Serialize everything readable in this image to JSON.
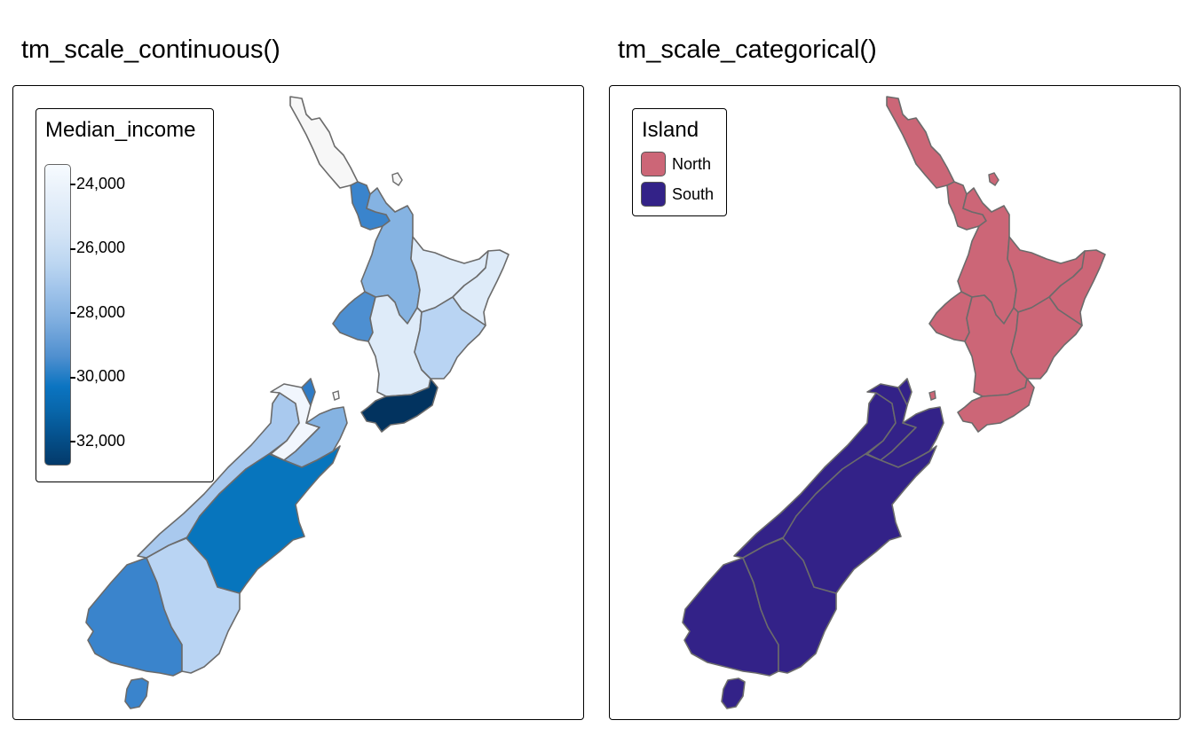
{
  "panels": {
    "left": {
      "title": "tm_scale_continuous()",
      "legend": {
        "title": "Median_income",
        "ticks": [
          "24,000",
          "26,000",
          "28,000",
          "30,000",
          "32,000"
        ],
        "tick_values": [
          24000,
          26000,
          28000,
          30000,
          32000
        ]
      },
      "region_colors": {
        "northland": "#f7f7f7",
        "auckland": "#3a84cc",
        "waikato": "#85b3e2",
        "bay_of_plenty": "#deebf9",
        "gisborne": "#deebf9",
        "taranaki": "#4d8fd1",
        "manawatu_wanganui": "#deebf9",
        "hawkes_bay": "#b9d4f3",
        "wellington": "#02335f",
        "tasman": "#f1f6fd",
        "nelson": "#2f7bc5",
        "marlborough": "#85b3e2",
        "west_coast": "#a9c9ee",
        "canterbury": "#0775bd",
        "otago": "#b9d4f3",
        "southland": "#3a84cc",
        "stewart_island": "#3a84cc"
      }
    },
    "right": {
      "title": "tm_scale_categorical()",
      "legend": {
        "title": "Island",
        "items": [
          {
            "label": "North",
            "color": "#cc6677"
          },
          {
            "label": "South",
            "color": "#332288"
          }
        ]
      }
    }
  }
}
